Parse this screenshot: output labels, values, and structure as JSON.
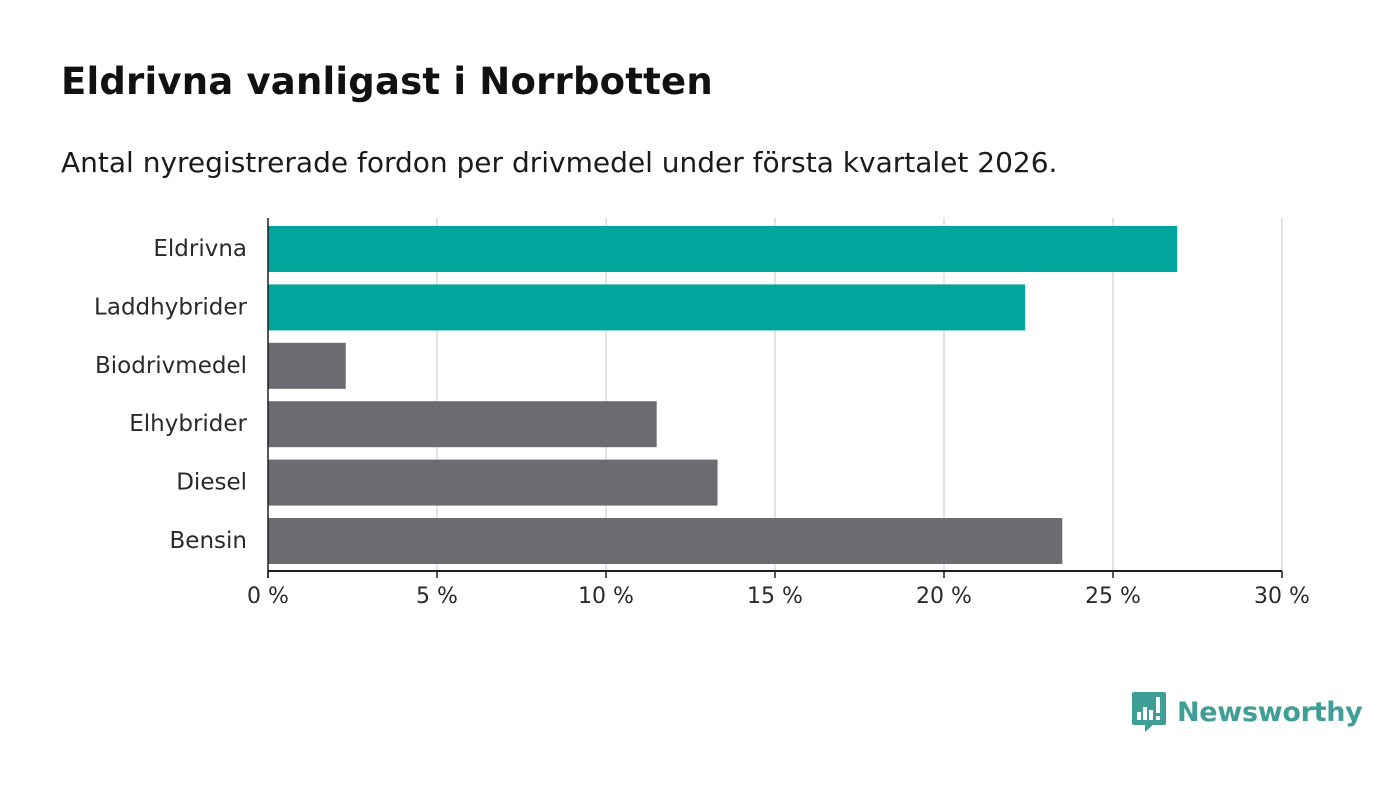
{
  "header": {
    "title": "Eldrivna vanligast i Norrbotten",
    "subtitle": "Antal nyregistrerade fordon per drivmedel under första kvartalet 2026."
  },
  "chart_data": {
    "type": "bar",
    "orientation": "horizontal",
    "title": "Eldrivna vanligast i Norrbotten",
    "subtitle": "Antal nyregistrerade fordon per drivmedel under första kvartalet 2026.",
    "xlabel": "",
    "ylabel": "",
    "xlim": [
      0,
      30
    ],
    "tick_values": [
      0,
      5,
      10,
      15,
      20,
      25,
      30
    ],
    "tick_labels": [
      "0 %",
      "5 %",
      "10 %",
      "15 %",
      "20 %",
      "25 %",
      "30 %"
    ],
    "grid": true,
    "categories": [
      "Eldrivna",
      "Laddhybrider",
      "Biodrivmedel",
      "Elhybrider",
      "Diesel",
      "Bensin"
    ],
    "values": [
      26.9,
      22.4,
      2.3,
      11.5,
      13.3,
      23.5
    ],
    "colors": [
      "#00a69c",
      "#00a69c",
      "#6d6b72",
      "#6d6b72",
      "#6d6b72",
      "#6d6b72"
    ]
  },
  "colors": {
    "highlight": "#00a69c",
    "neutral": "#6d6b72",
    "grid": "#dcdcdc",
    "axis": "#1f1f1f",
    "brand": "#3f9e96"
  },
  "brand": {
    "icon": "newsworthy-logo-icon",
    "name": "Newsworthy"
  }
}
